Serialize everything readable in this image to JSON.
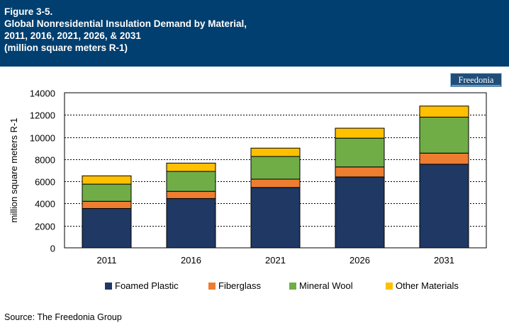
{
  "header": {
    "figure_label": "Figure 3-5.",
    "title_line1": "Global Nonresidential Insulation Demand by Material,",
    "title_line2": "2011, 2016, 2021, 2026, & 2031",
    "title_line3": "(million square meters R-1)"
  },
  "logo": {
    "text": "Freedonia"
  },
  "source": "Source: The Freedonia Group",
  "colors": {
    "header_bg": "#003f6f",
    "foamed_plastic": "#1f3864",
    "fiberglass": "#ed7d31",
    "mineral_wool": "#70ad47",
    "other_materials": "#ffc000"
  },
  "chart_data": {
    "type": "bar",
    "stacked": true,
    "title": "Global Nonresidential Insulation Demand by Material, 2011, 2016, 2021, 2026, & 2031",
    "xlabel": "",
    "ylabel": "million square meters R-1",
    "ylim": [
      0,
      14000
    ],
    "yticks": [
      0,
      2000,
      4000,
      6000,
      8000,
      10000,
      12000,
      14000
    ],
    "grid": true,
    "legend_position": "bottom",
    "categories": [
      "2011",
      "2016",
      "2021",
      "2026",
      "2031"
    ],
    "series": [
      {
        "name": "Foamed Plastic",
        "color": "#1f3864",
        "values": [
          3550,
          4450,
          5450,
          6400,
          7550
        ]
      },
      {
        "name": "Fiberglass",
        "color": "#ed7d31",
        "values": [
          650,
          650,
          750,
          900,
          1000
        ]
      },
      {
        "name": "Mineral Wool",
        "color": "#70ad47",
        "values": [
          1550,
          1800,
          2050,
          2600,
          3250
        ]
      },
      {
        "name": "Other Materials",
        "color": "#ffc000",
        "values": [
          750,
          750,
          750,
          900,
          1000
        ]
      }
    ]
  }
}
